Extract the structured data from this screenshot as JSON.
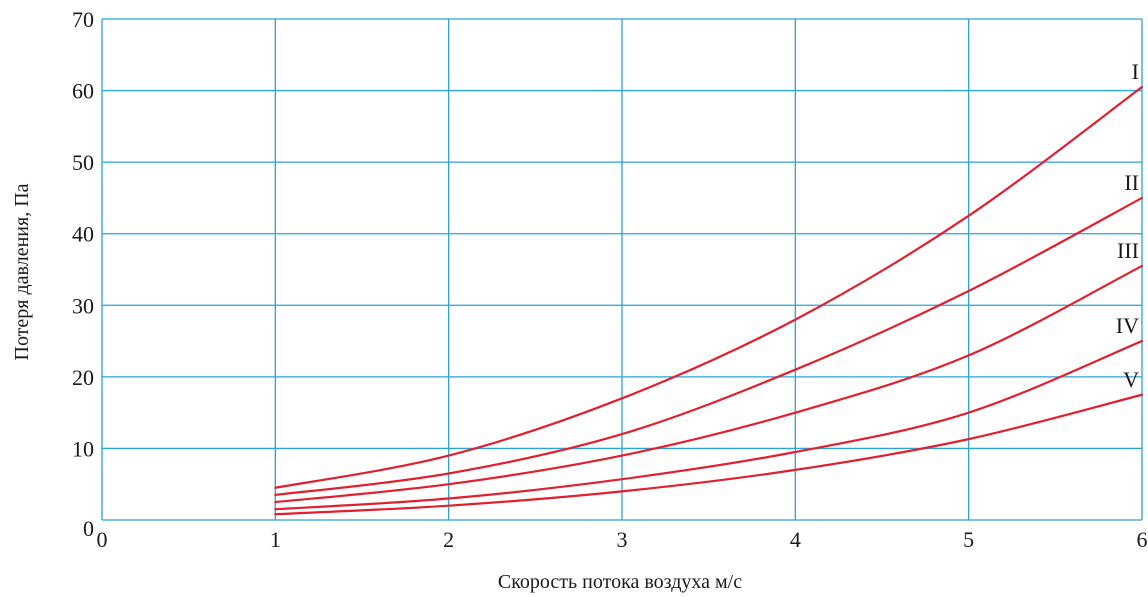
{
  "chart_data": {
    "type": "line",
    "title": "",
    "xlabel": "Скорость потока воздуха м/с",
    "ylabel": "Потеря давления, Па",
    "xlim": [
      0,
      6
    ],
    "ylim": [
      0,
      70
    ],
    "x_ticks": [
      "0",
      "1",
      "2",
      "3",
      "4",
      "5",
      "6"
    ],
    "y_ticks": [
      "0",
      "10",
      "20",
      "30",
      "40",
      "50",
      "60",
      "70"
    ],
    "grid": true,
    "legend": "none",
    "colors": {
      "grid": "#29a3d9",
      "series": "#e0202e",
      "text": "#1a1a1a"
    },
    "x": [
      1,
      2,
      3,
      4,
      5,
      6
    ],
    "series": [
      {
        "name": "I",
        "values": [
          4.5,
          9,
          17,
          28,
          42.5,
          60.5
        ]
      },
      {
        "name": "II",
        "values": [
          3.5,
          6.5,
          12,
          21,
          32,
          45
        ]
      },
      {
        "name": "III",
        "values": [
          2.5,
          5,
          9,
          15,
          23,
          35.5
        ]
      },
      {
        "name": "IV",
        "values": [
          1.5,
          3,
          5.7,
          9.5,
          15,
          25
        ]
      },
      {
        "name": "V",
        "values": [
          0.8,
          2,
          4,
          7,
          11.3,
          17.5
        ]
      }
    ]
  }
}
